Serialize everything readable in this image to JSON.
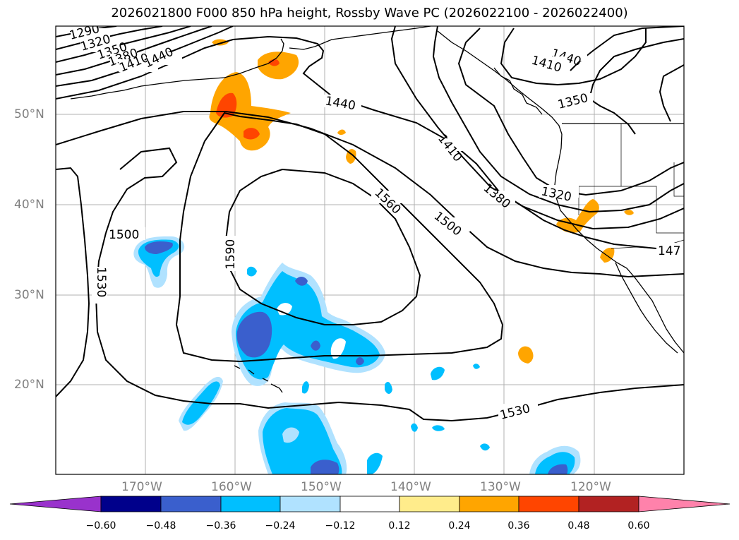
{
  "title": "2026021800 F000 850 hPa height, Rossby Wave PC (2026022100 - 2026022400)",
  "map": {
    "lat_labels": [
      "50°N",
      "40°N",
      "30°N",
      "20°N"
    ],
    "lon_labels": [
      "170°W",
      "160°W",
      "150°W",
      "140°W",
      "130°W",
      "120°W"
    ],
    "contour_labels": [
      "1290",
      "1320",
      "1350",
      "1380",
      "1410",
      "1440",
      "1440",
      "1410",
      "1350",
      "1440",
      "1410",
      "1380",
      "1320",
      "1500",
      "1560",
      "1590",
      "1500",
      "1530",
      "1530",
      "147"
    ]
  },
  "colorbar": {
    "tick_labels": [
      "−0.60",
      "−0.48",
      "−0.36",
      "−0.24",
      "−0.12",
      "0.12",
      "0.24",
      "0.36",
      "0.48",
      "0.60"
    ],
    "colors": [
      "#9932cc",
      "#00008b",
      "#3a5fcd",
      "#00bfff",
      "#b0e2ff",
      "#ffffff",
      "#ffec8b",
      "#ffa500",
      "#ff4500",
      "#b22222",
      "#ff82ab"
    ]
  }
}
